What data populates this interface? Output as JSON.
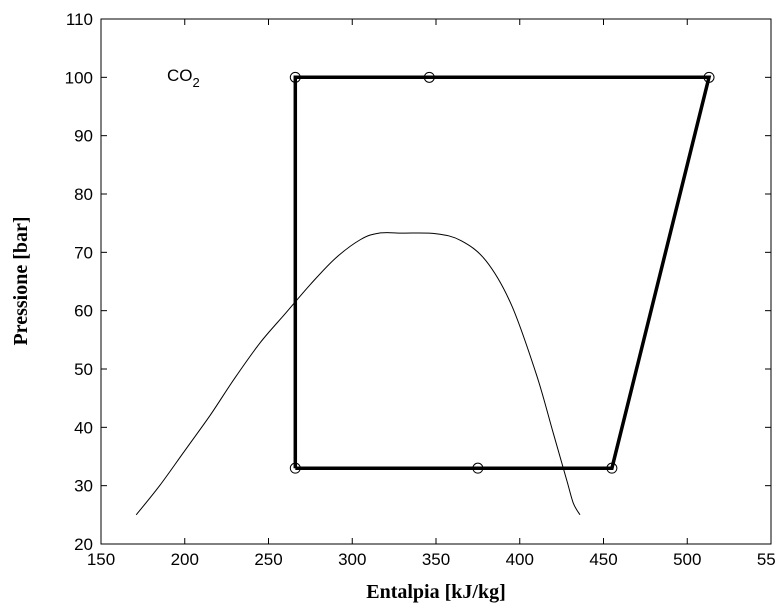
{
  "chart_data": {
    "type": "line",
    "title": "",
    "xlabel": "Entalpia [kJ/kg]",
    "ylabel": "Pressione [bar]",
    "xlim": [
      150,
      550
    ],
    "ylim": [
      20,
      110
    ],
    "xticks": [
      150,
      200,
      250,
      300,
      350,
      400,
      450,
      500,
      550
    ],
    "yticks": [
      20,
      30,
      40,
      50,
      60,
      70,
      80,
      90,
      100,
      110
    ],
    "grid": false,
    "annotation": {
      "text": "CO",
      "subscript": "2"
    },
    "series": [
      {
        "kind": "saturation-dome",
        "color": "#000000",
        "x": [
          171,
          185,
          200,
          215,
          230,
          245,
          260,
          275,
          290,
          305,
          316,
          330,
          350,
          365,
          380,
          395,
          410,
          420,
          428,
          432,
          436
        ],
        "y": [
          25,
          30,
          36,
          42,
          48.5,
          54.5,
          59.5,
          64.5,
          69,
          72.2,
          73.3,
          73.3,
          73.2,
          72,
          68.5,
          61,
          49,
          39,
          31,
          27,
          25
        ]
      },
      {
        "kind": "cycle",
        "color": "#000000",
        "x": [
          266,
          266,
          513,
          455,
          266
        ],
        "y": [
          33,
          100,
          100,
          33,
          33
        ]
      },
      {
        "kind": "state-points",
        "color": "#000000",
        "x": [
          266,
          346,
          513,
          266,
          375,
          455
        ],
        "y": [
          100,
          100,
          100,
          33,
          33,
          33
        ]
      }
    ]
  }
}
